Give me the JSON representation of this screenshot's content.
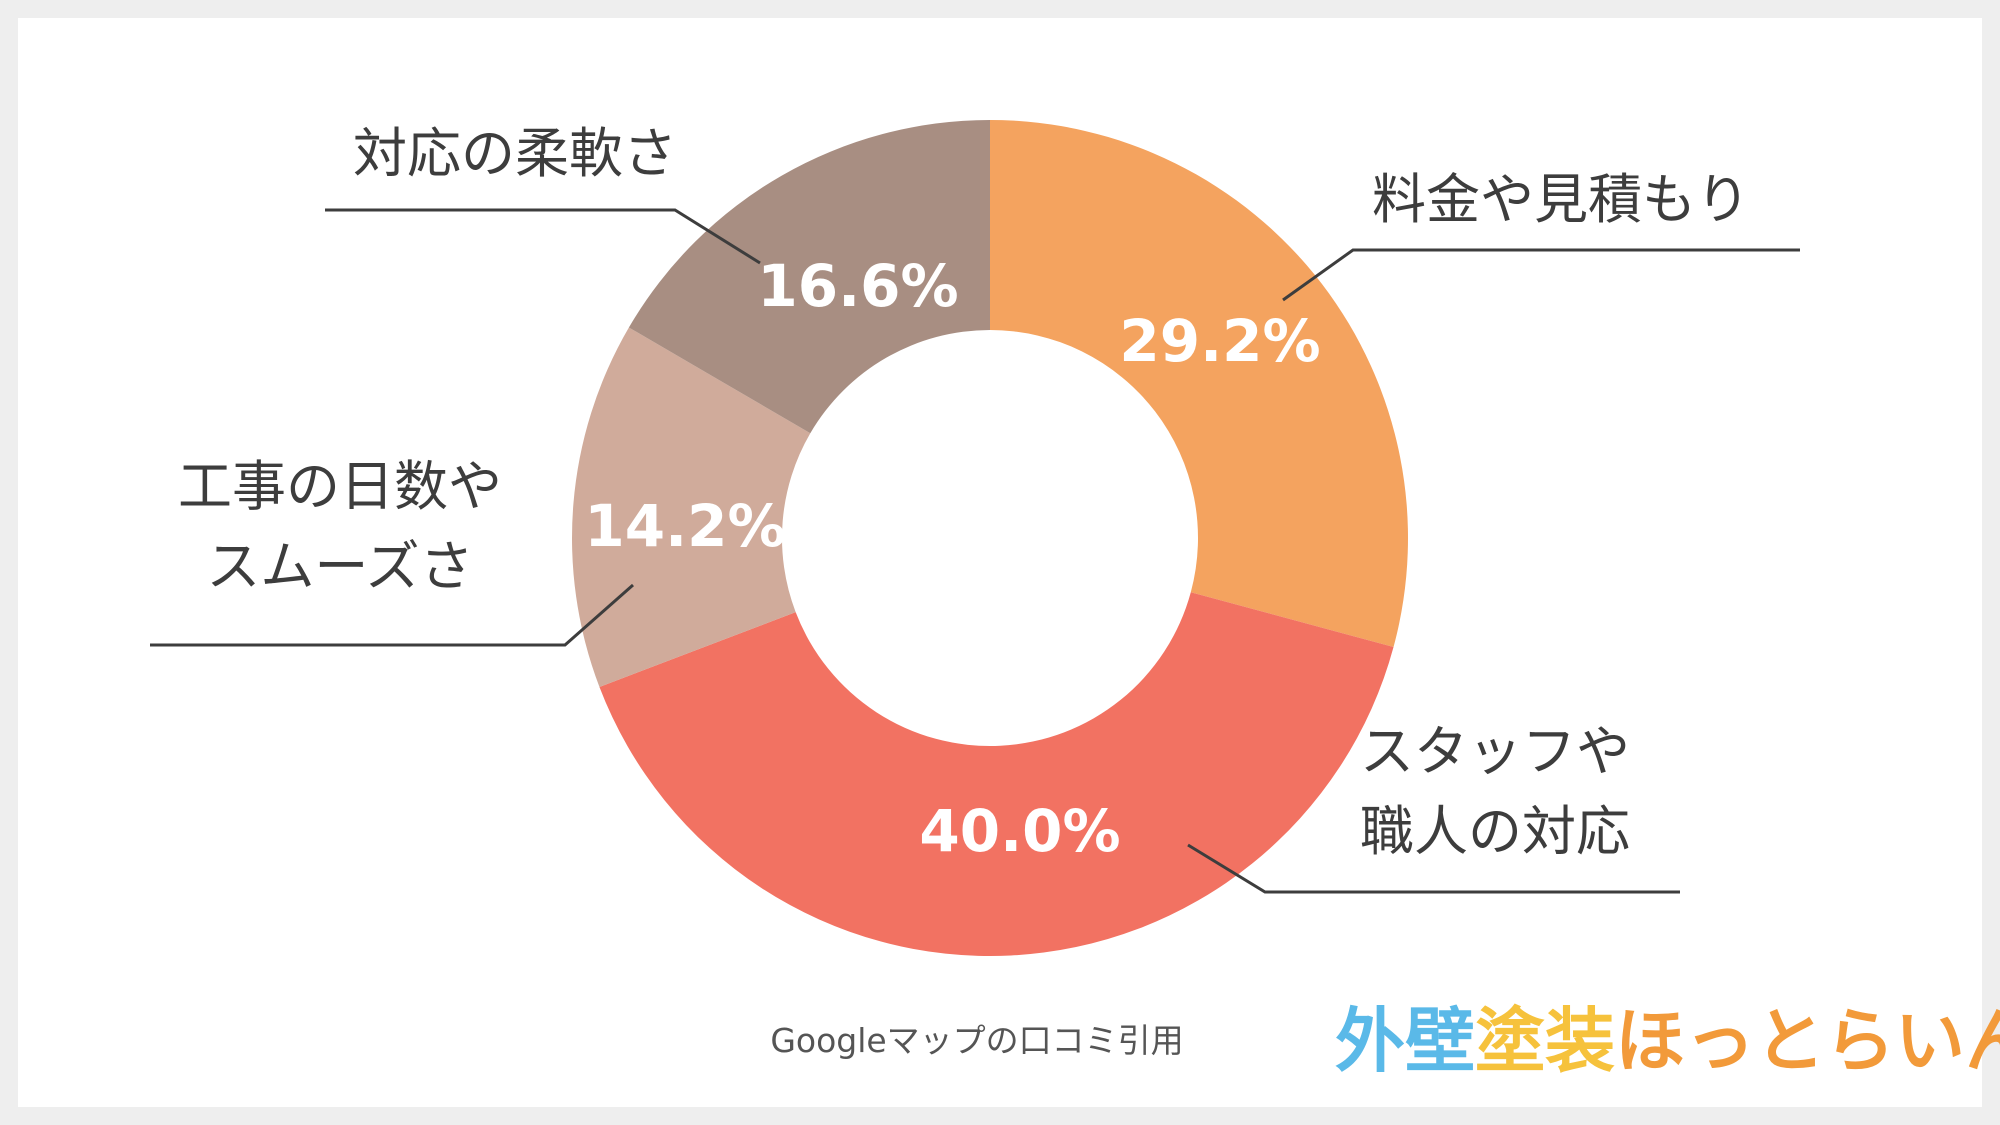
{
  "chart_data": {
    "type": "pie",
    "categories": [
      "料金や見積もり",
      "スタッフや職人の対応",
      "工事の日数やスムーズさ",
      "対応の柔軟さ"
    ],
    "label_lines": [
      [
        "料金や見積もり"
      ],
      [
        "スタッフや",
        "職人の対応"
      ],
      [
        "工事の日数や",
        "スムーズさ"
      ],
      [
        "対応の柔軟さ"
      ]
    ],
    "values": [
      29.2,
      40.0,
      14.2,
      16.6
    ],
    "value_labels": [
      "29.2%",
      "40.0%",
      "14.2%",
      "16.6%"
    ],
    "colors": [
      "#f4a35f",
      "#f27262",
      "#d0ab9b",
      "#a88e82"
    ],
    "donut": true,
    "start_angle": "12 o'clock",
    "direction": "clockwise",
    "legend": "none"
  },
  "footer": {
    "source_note": "Googleマップの口コミ引用"
  },
  "logo": {
    "name": "外壁塗装ほっとらいん",
    "text_part1": "外壁",
    "text_part2": "塗装",
    "text_part3": "ほっとらいん",
    "colors": [
      "#5ab9e8",
      "#f6c23c",
      "#f29a3a"
    ]
  }
}
